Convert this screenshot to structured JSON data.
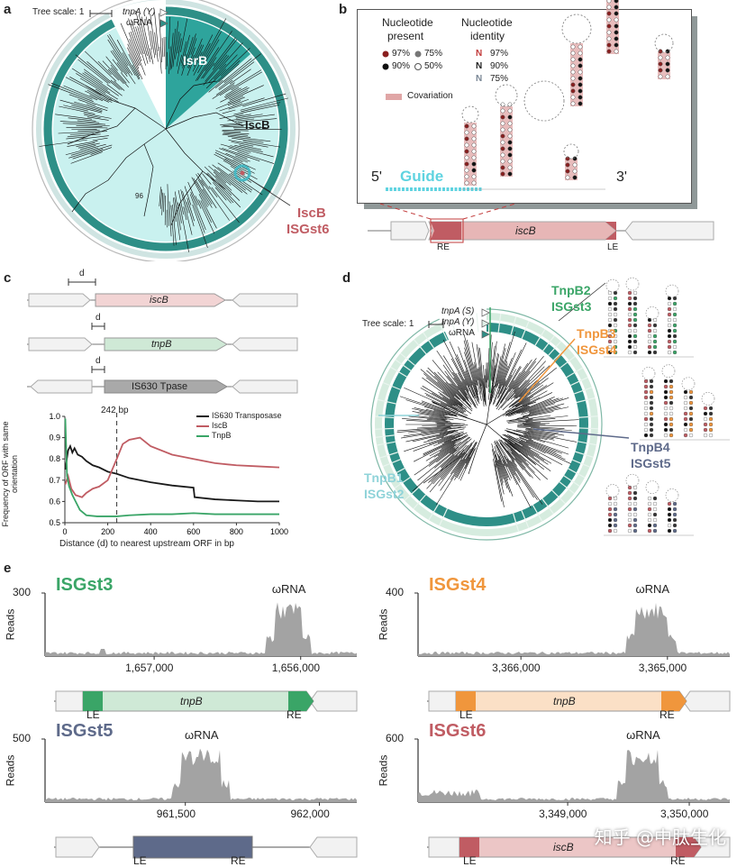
{
  "panel_labels": {
    "a": "a",
    "b": "b",
    "c": "c",
    "d": "d",
    "e": "e"
  },
  "panel_a": {
    "tree_scale": "Tree scale: 1",
    "legend": [
      "tnpA (Y)",
      "ωRNA"
    ],
    "clade_isrb": "IsrB",
    "clade_iscb": "IscB",
    "bootstrap": "96",
    "callout_line1": "IscB",
    "callout_line2": "ISGst6"
  },
  "panel_b": {
    "header_present": [
      "Nucleotide",
      "present"
    ],
    "header_identity": [
      "Nucleotide",
      "identity"
    ],
    "present_items": [
      "97%",
      "75%",
      "90%",
      "50%"
    ],
    "identity_items": [
      {
        "glyph": "N",
        "value": "97%",
        "color": "#c23b3b"
      },
      {
        "glyph": "N",
        "value": "90%",
        "color": "#222222"
      },
      {
        "glyph": "N",
        "value": "75%",
        "color": "#7a8796"
      }
    ],
    "covariation": "Covariation",
    "five_prime": "5'",
    "three_prime": "3'",
    "guide": "Guide",
    "gene": "iscB",
    "re": "RE",
    "le": "LE",
    "colors": {
      "guide": "#5fd3e0",
      "pink": "#e0a6a6",
      "red": "#c23b3b"
    }
  },
  "panel_c": {
    "d": "d",
    "genes": [
      "iscB",
      "tnpB",
      "IS630 Tpase"
    ],
    "chart_data": {
      "type": "line",
      "xlabel": "Distance (d) to nearest upstream ORF in bp",
      "ylabel": "Frequency of ORF with same orientation",
      "xlim": [
        0,
        1000
      ],
      "ylim": [
        0.5,
        1.0
      ],
      "xticks": [
        0,
        200,
        400,
        600,
        800,
        1000
      ],
      "yticks": [
        0.5,
        0.6,
        0.7,
        0.8,
        0.9,
        1.0
      ],
      "vline": {
        "x": 242,
        "label": "242 bp"
      },
      "legend_position": "top-right",
      "series": [
        {
          "name": "IS630 Transposase",
          "color": "#1a1a1a",
          "x": [
            2,
            15,
            25,
            35,
            45,
            60,
            80,
            100,
            130,
            160,
            200,
            242,
            300,
            400,
            500,
            600,
            605,
            700,
            800,
            900,
            1000
          ],
          "y": [
            0.75,
            0.84,
            0.86,
            0.83,
            0.85,
            0.82,
            0.81,
            0.79,
            0.77,
            0.76,
            0.74,
            0.73,
            0.71,
            0.69,
            0.675,
            0.665,
            0.62,
            0.61,
            0.605,
            0.6,
            0.6
          ]
        },
        {
          "name": "IscB",
          "color": "#c05c63",
          "x": [
            2,
            15,
            30,
            50,
            80,
            100,
            130,
            160,
            200,
            242,
            270,
            300,
            350,
            400,
            500,
            600,
            700,
            800,
            900,
            1000
          ],
          "y": [
            0.68,
            0.72,
            0.66,
            0.63,
            0.62,
            0.64,
            0.66,
            0.67,
            0.7,
            0.8,
            0.87,
            0.89,
            0.9,
            0.86,
            0.82,
            0.8,
            0.78,
            0.77,
            0.765,
            0.76
          ]
        },
        {
          "name": "TnpB",
          "color": "#3aa567",
          "x": [
            2,
            10,
            20,
            35,
            50,
            70,
            100,
            150,
            200,
            242,
            300,
            400,
            500,
            600,
            700,
            800,
            900,
            1000
          ],
          "y": [
            0.99,
            0.72,
            0.67,
            0.63,
            0.6,
            0.56,
            0.535,
            0.53,
            0.53,
            0.53,
            0.535,
            0.54,
            0.54,
            0.545,
            0.54,
            0.54,
            0.54,
            0.54
          ]
        }
      ]
    }
  },
  "panel_d": {
    "tree_scale": "Tree scale: 1",
    "legend": [
      "tnpA (S)",
      "tnpA (Y)",
      "ωRNA"
    ],
    "tnpb2": [
      "TnpB2",
      "ISGst3"
    ],
    "tnpb3": [
      "TnpB3",
      "ISGst4"
    ],
    "tnpb4": [
      "TnpB4",
      "ISGst5"
    ],
    "tnpb1": [
      "TnpB1",
      "ISGst2"
    ],
    "colors": {
      "tnpb2": "#3aa567",
      "tnpb3": "#f0963c",
      "tnpb4": "#5e6a8a",
      "tnpb1": "#8fd3d9"
    }
  },
  "panel_e": {
    "reads_label": "Reads",
    "wrna": "ωRNA",
    "tracks": [
      {
        "name": "ISGst3",
        "color": "#3aa567",
        "ymax": "300",
        "ticks": [
          "1,657,000",
          "1,656,000"
        ],
        "gene": "tnpB",
        "le": "LE",
        "re": "RE"
      },
      {
        "name": "ISGst4",
        "color": "#f0963c",
        "ymax": "400",
        "ticks": [
          "3,366,000",
          "3,365,000"
        ],
        "gene": "tnpB",
        "le": "LE",
        "re": "RE"
      },
      {
        "name": "ISGst5",
        "color": "#5e6a8a",
        "ymax": "500",
        "ticks": [
          "961,500",
          "962,000"
        ],
        "gene": "",
        "le": "LE",
        "re": "RE"
      },
      {
        "name": "ISGst6",
        "color": "#c05c63",
        "ymax": "600",
        "ticks": [
          "3,349,000",
          "3,350,000"
        ],
        "gene": "iscB",
        "le": "LE",
        "re": "RE"
      }
    ]
  },
  "watermark": "知乎 @中肽生化"
}
